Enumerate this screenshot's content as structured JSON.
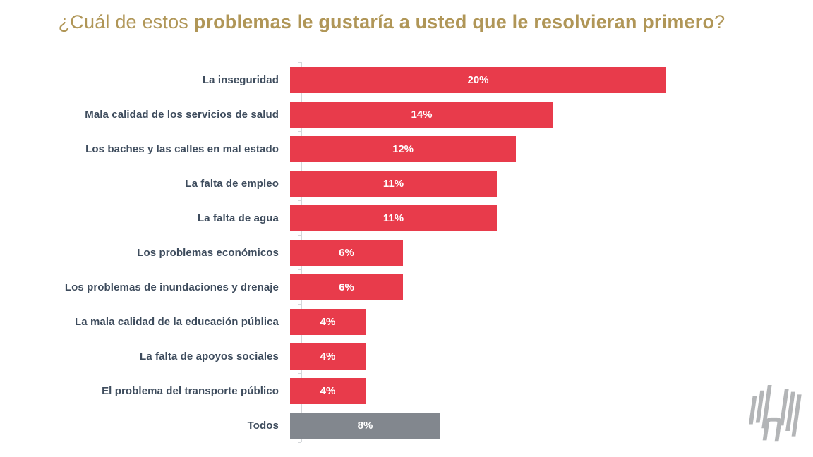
{
  "title": {
    "prefix": "¿Cuál de estos ",
    "emphasis": "problemas le gustaría a usted que le resolvieran primero",
    "suffix": "?"
  },
  "chart_data": {
    "type": "bar",
    "orientation": "horizontal",
    "title": "¿Cuál de estos problemas le gustaría a usted que le resolvieran primero?",
    "xlabel": "",
    "ylabel": "",
    "xlim": [
      0,
      20
    ],
    "grid": false,
    "legend": false,
    "categories": [
      "La inseguridad",
      "Mala calidad de los servicios de salud",
      "Los baches y las calles en mal estado",
      "La falta de empleo",
      "La falta de agua",
      "Los problemas económicos",
      "Los problemas de inundaciones y drenaje",
      "La mala calidad de la educación pública",
      "La falta de apoyos sociales",
      "El problema del transporte público",
      "Todos"
    ],
    "values": [
      20,
      14,
      12,
      11,
      11,
      6,
      6,
      4,
      4,
      4,
      8
    ],
    "value_labels": [
      "20%",
      "14%",
      "12%",
      "11%",
      "11%",
      "6%",
      "6%",
      "4%",
      "4%",
      "4%",
      "8%"
    ],
    "bar_colors": [
      "#e83b4b",
      "#e83b4b",
      "#e83b4b",
      "#e83b4b",
      "#e83b4b",
      "#e83b4b",
      "#e83b4b",
      "#e83b4b",
      "#e83b4b",
      "#e83b4b",
      "#82878e"
    ]
  },
  "colors": {
    "bar_red": "#e83b4b",
    "bar_gray": "#82878e",
    "title_gold": "#b09657",
    "label_slate": "#3e4c5d",
    "axis_gray": "#d4d7da",
    "value_text": "#ffffff",
    "logo_gray": "#b3b5b7",
    "background": "#ffffff"
  },
  "icons": {
    "logo": "brand-watermark-logo"
  }
}
